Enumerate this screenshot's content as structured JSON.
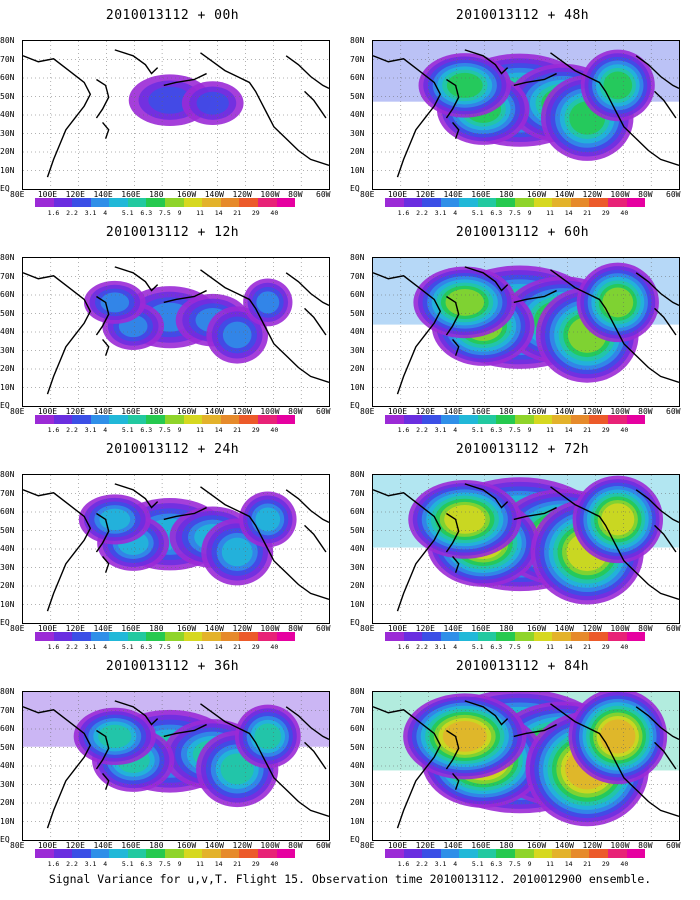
{
  "panels": [
    {
      "title": "2010013112 + 00h",
      "level": 0
    },
    {
      "title": "2010013112 + 48h",
      "level": 4
    },
    {
      "title": "2010013112 + 12h",
      "level": 1
    },
    {
      "title": "2010013112 + 60h",
      "level": 5
    },
    {
      "title": "2010013112 + 24h",
      "level": 2
    },
    {
      "title": "2010013112 + 72h",
      "level": 6
    },
    {
      "title": "2010013112 + 36h",
      "level": 3
    },
    {
      "title": "2010013112 + 84h",
      "level": 7
    }
  ],
  "lat_labels": [
    "80N",
    "70N",
    "60N",
    "50N",
    "40N",
    "30N",
    "20N",
    "10N",
    "EQ"
  ],
  "lon_labels": [
    "80E",
    "100E",
    "120E",
    "140E",
    "160E",
    "180",
    "160W",
    "140W",
    "120W",
    "100W",
    "80W",
    "60W"
  ],
  "colorbar": {
    "labels": [
      "1.6",
      "2.2",
      "3.1",
      "4",
      "5.1",
      "6.3",
      "7.5",
      "9",
      "11",
      "14",
      "21",
      "29",
      "40"
    ],
    "colors": [
      "#9b2ad6",
      "#6a2ee0",
      "#3b4fe6",
      "#2f8fe8",
      "#21b8d8",
      "#22c9a0",
      "#26c94f",
      "#8fd42a",
      "#d6d820",
      "#e3b22b",
      "#e68a2b",
      "#ec5a2a",
      "#e82277",
      "#e600a0"
    ]
  },
  "footer": "Signal Variance for u,v,T. Flight 15. Observation time 2010013112. 2010012900 ensemble."
}
